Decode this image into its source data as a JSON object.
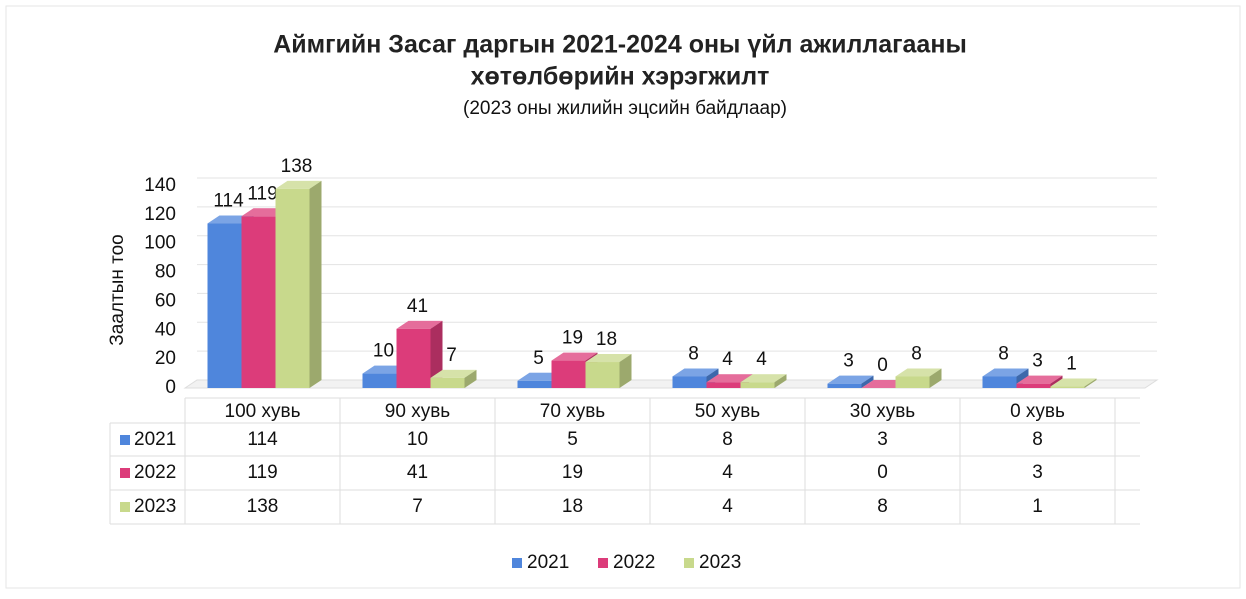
{
  "chart_data": {
    "type": "bar3d",
    "title": [
      "Аймгийн Засаг даргын 2021-2024 оны үйл ажиллагааны",
      "хөтөлбөрийн хэрэгжилт"
    ],
    "subtitle": "(2023 оны жилийн эцсийн байдлаар)",
    "y_label": "Заалтын тоо",
    "categories": [
      "100 хувь",
      "90 хувь",
      "70 хувь",
      "50 хувь",
      "30 хувь",
      "0 хувь"
    ],
    "series": [
      {
        "name": "2021",
        "color": "#4f86dc",
        "values": [
          114,
          10,
          5,
          8,
          3,
          8
        ]
      },
      {
        "name": "2022",
        "color": "#dc3c7a",
        "values": [
          119,
          41,
          19,
          4,
          0,
          3
        ]
      },
      {
        "name": "2023",
        "color": "#c8d98c",
        "values": [
          138,
          7,
          18,
          4,
          8,
          1
        ]
      }
    ],
    "ylim": [
      0,
      140
    ],
    "yticks": [
      0,
      20,
      40,
      60,
      80,
      100,
      120,
      140
    ],
    "grid": true,
    "legend": "bottom"
  }
}
